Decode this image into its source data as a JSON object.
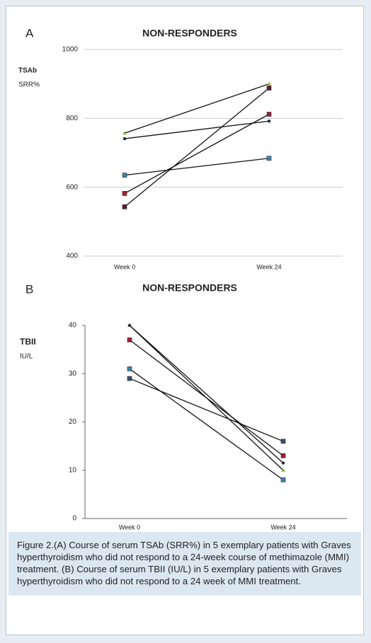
{
  "chart_data": [
    {
      "type": "line",
      "panel_label": "A",
      "title": "NON-RESPONDERS",
      "y_label": [
        "TSAb",
        "SRR%"
      ],
      "categories": [
        "Week  0",
        "Week 24"
      ],
      "ylim": [
        400,
        1000
      ],
      "yticks": [
        400,
        600,
        800,
        1000
      ],
      "grid": true,
      "series": [
        {
          "color": "#8fb23a",
          "marker": "triangle",
          "values": [
            757,
            900
          ]
        },
        {
          "color": "#1f2a3a",
          "marker": "circle",
          "values": [
            741,
            792
          ]
        },
        {
          "color": "#3f86a8",
          "marker": "square",
          "values": [
            635,
            684
          ]
        },
        {
          "color": "#a3202c",
          "marker": "square",
          "values": [
            582,
            812
          ]
        },
        {
          "color": "#5b1a36",
          "marker": "square",
          "values": [
            543,
            888
          ]
        }
      ]
    },
    {
      "type": "line",
      "panel_label": "B",
      "title": "NON-RESPONDERS",
      "y_label": [
        "TBII",
        "IU/L"
      ],
      "categories": [
        "Week 0",
        "Week 24"
      ],
      "ylim": [
        0,
        40
      ],
      "yticks": [
        0,
        10,
        20,
        30,
        40
      ],
      "grid": false,
      "series": [
        {
          "color": "#8fb23a",
          "marker": "triangle",
          "values": [
            40,
            10
          ]
        },
        {
          "color": "#1f2a3a",
          "marker": "circle",
          "values": [
            40,
            11.5
          ]
        },
        {
          "color": "#a3202c",
          "marker": "square",
          "values": [
            37,
            13
          ]
        },
        {
          "color": "#3f86a8",
          "marker": "square",
          "values": [
            31,
            8
          ]
        },
        {
          "color": "#3d4f6e",
          "marker": "square",
          "values": [
            29,
            16
          ]
        }
      ]
    }
  ],
  "caption": "Figure 2.(A) Course of serum TSAb (SRR%) in 5 exemplary patients with Graves hyperthyroidism who did not respond to a 24-week course of methimazole (MMI) treatment. (B) Course of serum TBII (IU/L) in 5 exemplary patients with Graves hyperthyroidism who did not respond to a 24 week of MMI treatment."
}
